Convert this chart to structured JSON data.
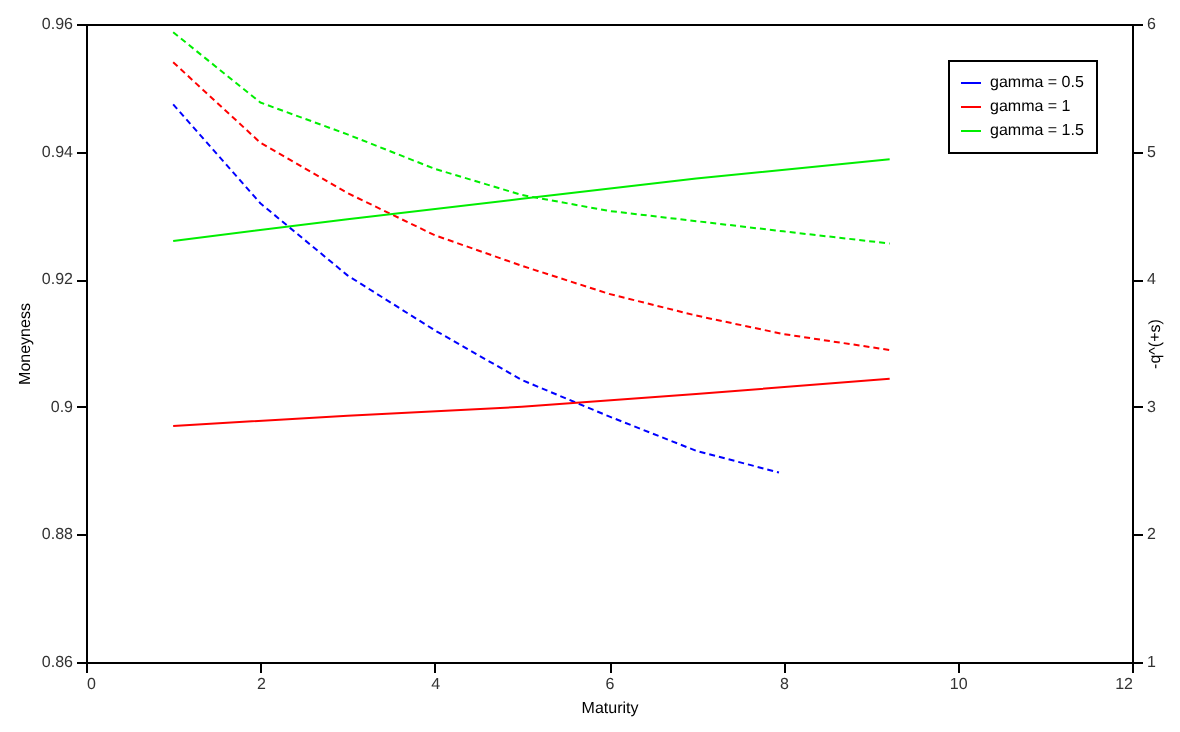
{
  "chart_data": {
    "type": "line",
    "xlabel": "Maturity",
    "ylabel": "Moneyness",
    "y2label": "-q^(+s)",
    "xlim": [
      0,
      12
    ],
    "xticks": [
      0,
      2,
      4,
      6,
      8,
      10,
      12
    ],
    "ylim": [
      0.86,
      0.96
    ],
    "yticks": [
      0.86,
      0.88,
      0.9,
      0.92,
      0.94,
      0.96
    ],
    "y2lim": [
      1,
      6
    ],
    "y2ticks": [
      1,
      2,
      3,
      4,
      5,
      6
    ],
    "legend": "top right",
    "grid": false,
    "series": [
      {
        "name": "gamma = 0.5",
        "color": "#0000ff",
        "line_style": "dashed",
        "x": [
          1,
          2,
          3,
          4,
          5,
          6,
          7,
          7.95
        ],
        "values": [
          0.9474,
          0.9319,
          0.9206,
          0.912,
          0.9042,
          0.8985,
          0.8931,
          0.8897
        ]
      },
      {
        "name": "gamma = 1",
        "color": "#ff0000",
        "line_style": "dashed",
        "x": [
          1,
          2,
          3,
          4,
          5,
          6,
          7,
          8,
          9.22
        ],
        "values": [
          0.954,
          0.9414,
          0.9335,
          0.9269,
          0.9221,
          0.9177,
          0.9143,
          0.9114,
          0.9089
        ]
      },
      {
        "name": "gamma = 1.5",
        "color": "#00ee00",
        "line_style": "dashed",
        "x": [
          1,
          2,
          3,
          4,
          5,
          6,
          7,
          8,
          9.22
        ],
        "values": [
          0.9587,
          0.9477,
          0.9427,
          0.9373,
          0.9332,
          0.9307,
          0.9291,
          0.9275,
          0.9256
        ]
      },
      {
        "color": "#ff0000",
        "line_style": "solid",
        "axis": "y2",
        "x": [
          1,
          3,
          5,
          7,
          9.22
        ],
        "values": [
          2.85,
          2.93,
          3.0,
          3.1,
          3.22
        ]
      },
      {
        "color": "#00ee00",
        "line_style": "solid",
        "axis": "y2",
        "x": [
          1,
          3,
          5,
          7,
          9.22
        ],
        "values": [
          4.3,
          4.47,
          4.63,
          4.79,
          4.94
        ]
      }
    ]
  }
}
